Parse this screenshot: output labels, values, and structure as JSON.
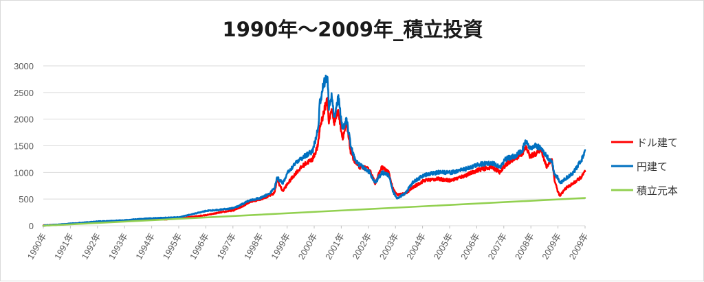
{
  "chart_data": {
    "type": "line",
    "title": "1990年～2009年_積立投資",
    "xlabel": "",
    "ylabel": "",
    "ylim": [
      0,
      3000
    ],
    "y_ticks": [
      "0",
      "500",
      "1000",
      "1500",
      "2000",
      "2500",
      "3000"
    ],
    "x_ticks": [
      "1990年",
      "1991年",
      "1992年",
      "1993年",
      "1994年",
      "1995年",
      "1996年",
      "1997年",
      "1998年",
      "1999年",
      "2000年",
      "2001年",
      "2002年",
      "2003年",
      "2004年",
      "2005年",
      "2006年",
      "2007年",
      "2008年",
      "2009年",
      "2009年"
    ],
    "xlim": [
      1990.0,
      2009.92
    ],
    "grid": "horizontal",
    "legend_position": "right",
    "series": [
      {
        "name": "ドル建て",
        "color": "#ff0000",
        "x": [
          1990.0,
          1990.5,
          1991.0,
          1991.5,
          1992.0,
          1992.5,
          1993.0,
          1993.5,
          1994.0,
          1994.5,
          1995.0,
          1995.5,
          1996.0,
          1996.5,
          1997.0,
          1997.3,
          1997.6,
          1998.0,
          1998.3,
          1998.5,
          1998.6,
          1998.8,
          1999.0,
          1999.3,
          1999.6,
          1999.9,
          2000.1,
          2000.17,
          2000.3,
          2000.45,
          2000.5,
          2000.6,
          2000.7,
          2000.85,
          2001.0,
          2001.15,
          2001.3,
          2001.45,
          2001.6,
          2001.75,
          2002.0,
          2002.2,
          2002.45,
          2002.7,
          2002.85,
          2003.0,
          2003.3,
          2003.6,
          2004.0,
          2004.5,
          2005.0,
          2005.5,
          2006.0,
          2006.5,
          2006.8,
          2007.0,
          2007.3,
          2007.6,
          2007.75,
          2007.9,
          2008.1,
          2008.3,
          2008.5,
          2008.7,
          2008.8,
          2008.92,
          2009.0,
          2009.2,
          2009.5,
          2009.8,
          2009.92
        ],
        "y": [
          5,
          18,
          35,
          55,
          72,
          82,
          95,
          110,
          125,
          120,
          140,
          170,
          200,
          250,
          290,
          360,
          450,
          500,
          560,
          620,
          860,
          650,
          800,
          1000,
          1150,
          1250,
          1500,
          1850,
          2100,
          2400,
          1900,
          2200,
          1950,
          2150,
          1650,
          1900,
          1400,
          1200,
          1100,
          1100,
          1050,
          800,
          1100,
          1000,
          700,
          580,
          600,
          720,
          850,
          880,
          850,
          940,
          1050,
          1100,
          1000,
          1150,
          1250,
          1350,
          1470,
          1300,
          1350,
          1450,
          1100,
          1250,
          850,
          640,
          560,
          700,
          800,
          920,
          1020
        ]
      },
      {
        "name": "円建て",
        "color": "#0070c0",
        "x": [
          1990.0,
          1990.5,
          1991.0,
          1991.5,
          1992.0,
          1992.5,
          1993.0,
          1993.5,
          1994.0,
          1994.5,
          1995.0,
          1995.5,
          1996.0,
          1996.5,
          1997.0,
          1997.3,
          1997.6,
          1998.0,
          1998.3,
          1998.5,
          1998.6,
          1998.8,
          1999.0,
          1999.3,
          1999.6,
          1999.9,
          2000.1,
          2000.17,
          2000.3,
          2000.45,
          2000.5,
          2000.6,
          2000.7,
          2000.85,
          2001.0,
          2001.15,
          2001.3,
          2001.45,
          2001.6,
          2001.75,
          2002.0,
          2002.2,
          2002.45,
          2002.7,
          2002.85,
          2003.0,
          2003.3,
          2003.6,
          2004.0,
          2004.5,
          2005.0,
          2005.5,
          2006.0,
          2006.5,
          2006.8,
          2007.0,
          2007.3,
          2007.6,
          2007.75,
          2007.9,
          2008.1,
          2008.3,
          2008.5,
          2008.7,
          2008.8,
          2008.92,
          2009.0,
          2009.2,
          2009.5,
          2009.8,
          2009.92
        ],
        "y": [
          5,
          20,
          40,
          60,
          80,
          90,
          105,
          125,
          140,
          150,
          160,
          220,
          280,
          300,
          330,
          400,
          480,
          520,
          600,
          700,
          900,
          800,
          1000,
          1200,
          1300,
          1400,
          1800,
          2300,
          2650,
          2800,
          2200,
          2450,
          2050,
          2400,
          1800,
          2000,
          1500,
          1250,
          1150,
          1100,
          1000,
          800,
          1000,
          950,
          650,
          520,
          600,
          820,
          950,
          1000,
          1000,
          1060,
          1150,
          1180,
          1100,
          1250,
          1300,
          1400,
          1600,
          1450,
          1500,
          1450,
          1300,
          1200,
          950,
          900,
          800,
          880,
          1000,
          1250,
          1420
        ]
      },
      {
        "name": "積立元本",
        "color": "#92d050",
        "x": [
          1990.0,
          2009.92
        ],
        "y": [
          0,
          520
        ]
      }
    ]
  }
}
